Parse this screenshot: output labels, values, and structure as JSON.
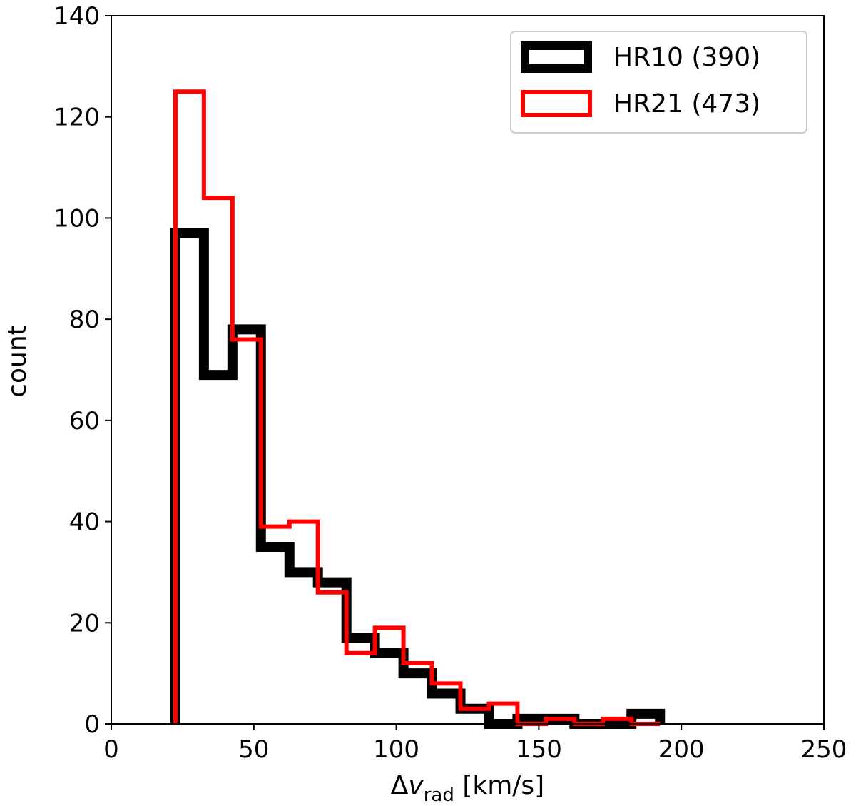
{
  "chart_data": {
    "type": "histogram",
    "xlabel": {
      "main": "Δ",
      "var": "v",
      "sub": "rad",
      "unit": " [km/s]"
    },
    "ylabel": "count",
    "xlim": [
      0,
      250
    ],
    "ylim": [
      0,
      140
    ],
    "xticks": [
      0,
      50,
      100,
      150,
      200,
      250
    ],
    "yticks": [
      0,
      20,
      40,
      60,
      80,
      100,
      120,
      140
    ],
    "grid": false,
    "legend_position": "top-right",
    "bin_edges": [
      22.5,
      32.5,
      42.5,
      52.5,
      62.5,
      72.5,
      82.5,
      92.5,
      102.5,
      112.5,
      122.5,
      132.5,
      142.5,
      152.5,
      162.5,
      172.5,
      182.5,
      192.5
    ],
    "series": [
      {
        "name": "HR10 (390)",
        "color": "#000000",
        "counts": [
          97,
          69,
          78,
          35,
          30,
          28,
          17,
          14,
          10,
          6,
          3,
          0,
          1,
          1,
          0,
          0,
          2
        ]
      },
      {
        "name": "HR21 (473)",
        "color": "#ff0000",
        "counts": [
          125,
          104,
          76,
          39,
          40,
          26,
          14,
          19,
          12,
          8,
          3,
          4,
          0,
          1,
          0,
          1,
          0
        ]
      }
    ]
  }
}
